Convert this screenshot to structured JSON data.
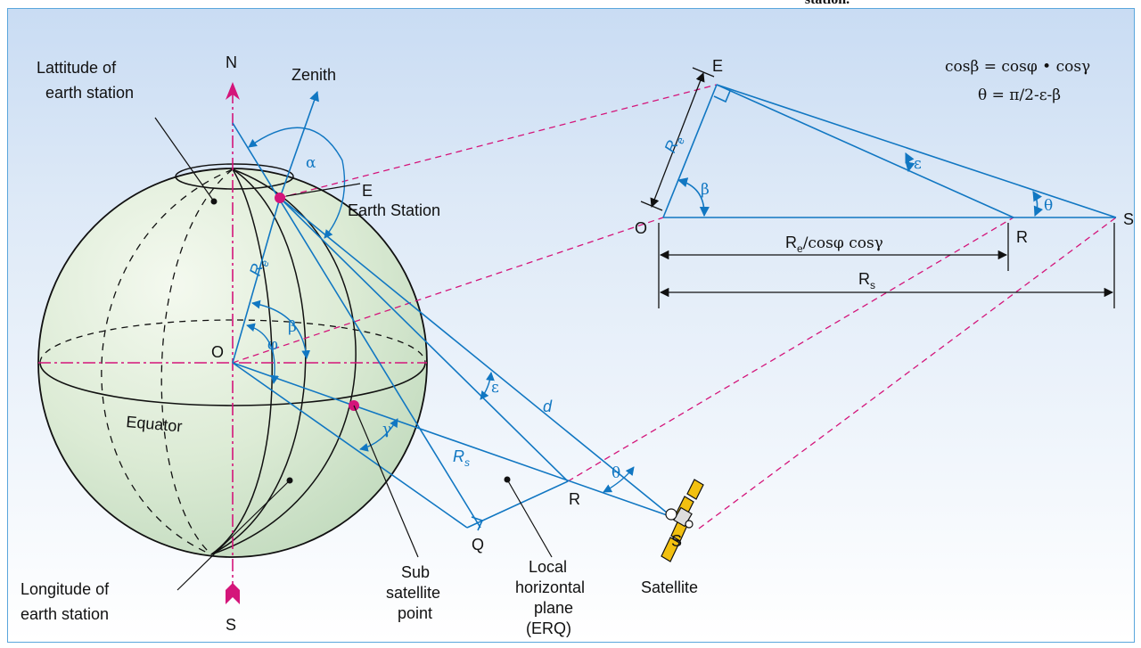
{
  "caption_fragment": "station.",
  "labels": {
    "latitude": [
      "Lattitude of",
      "earth station"
    ],
    "longitude": [
      "Longitude of",
      "earth station"
    ],
    "north": "N",
    "south": "S",
    "zenith": "Zenith",
    "earth_station_letter": "E",
    "earth_station_name": "Earth Station",
    "center": "O",
    "equator": "Equator",
    "re": "R",
    "re_sub": "e",
    "rs": "R",
    "rs_sub": "s",
    "d": "d",
    "r_point": "R",
    "q_point": "Q",
    "s_point": "S",
    "satellite": "Satellite",
    "sub_satellite": [
      "Sub",
      "satellite",
      "point"
    ],
    "local_plane": [
      "Local",
      "horizontal",
      "plane",
      "(ERQ)"
    ]
  },
  "angles": {
    "alpha": "α",
    "beta": "β",
    "phi": "φ",
    "gamma": "γ",
    "epsilon": "ε",
    "theta": "θ"
  },
  "inset": {
    "E": "E",
    "O": "O",
    "R": "R",
    "S": "S",
    "re": "R",
    "re_sub": "e",
    "beta": "β",
    "epsilon": "ε",
    "theta": "θ",
    "dim1_a": "R",
    "dim1_sub": "e",
    "dim1_b": "/cosφ cosγ",
    "dim2": "R",
    "dim2_sub": "s"
  },
  "formulas": {
    "line1": "cosβ = cosφ • cosγ",
    "line2": "θ = π/2-ε-β"
  },
  "colors": {
    "line_blue": "#1177c2",
    "magenta": "#d4157a",
    "globe_fill": "#dcebd5",
    "satellite_gold": "#f2c010"
  }
}
